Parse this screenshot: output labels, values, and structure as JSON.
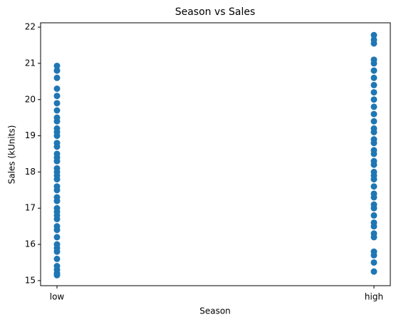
{
  "chart_data": {
    "type": "scatter",
    "title": "Season vs Sales",
    "x_label": "Season",
    "y_label": "Sales (kUnits)",
    "categories": [
      "low",
      "high"
    ],
    "values": [
      [
        15.15,
        15.2,
        15.3,
        15.4,
        15.6,
        15.8,
        15.9,
        16.0,
        16.2,
        16.4,
        16.5,
        16.7,
        16.8,
        16.9,
        17.0,
        17.2,
        17.3,
        17.5,
        17.6,
        17.8,
        17.9,
        18.0,
        18.1,
        18.3,
        18.4,
        18.5,
        18.7,
        18.8,
        19.0,
        19.1,
        19.2,
        19.4,
        19.5,
        19.7,
        19.9,
        20.1,
        20.3,
        20.6,
        20.8,
        20.93
      ],
      [
        15.25,
        15.5,
        15.7,
        15.8,
        16.2,
        16.3,
        16.5,
        16.6,
        16.8,
        17.0,
        17.1,
        17.3,
        17.4,
        17.6,
        17.8,
        17.9,
        18.0,
        18.2,
        18.3,
        18.5,
        18.6,
        18.8,
        18.9,
        19.1,
        19.2,
        19.4,
        19.6,
        19.8,
        20.0,
        20.2,
        20.4,
        20.6,
        20.8,
        21.0,
        21.1,
        21.55,
        21.65,
        21.78
      ]
    ],
    "color": "#1f77b4",
    "ylim": [
      14.86,
      22.12
    ],
    "yticks": [
      15,
      16,
      17,
      18,
      19,
      20,
      21,
      22
    ]
  }
}
